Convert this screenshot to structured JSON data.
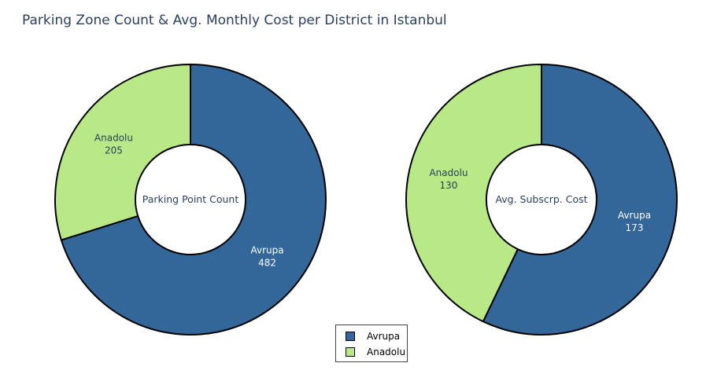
{
  "title": "Parking Zone Count & Avg. Monthly Cost per District in Istanbul",
  "legend": [
    {
      "name": "Avrupa",
      "color": "#336699"
    },
    {
      "name": "Anadolu",
      "color": "#b8e986"
    }
  ],
  "chart_data": [
    {
      "type": "pie",
      "hole": true,
      "center_label": "Parking Point Count",
      "slices": [
        {
          "label": "Avrupa",
          "value": 482,
          "color": "#336699"
        },
        {
          "label": "Anadolu",
          "value": 205,
          "color": "#b8e986"
        }
      ]
    },
    {
      "type": "pie",
      "hole": true,
      "center_label": "Avg. Subscrp. Cost",
      "slices": [
        {
          "label": "Avrupa",
          "value": 173,
          "color": "#336699"
        },
        {
          "label": "Anadolu",
          "value": 130,
          "color": "#b8e986"
        }
      ]
    }
  ]
}
